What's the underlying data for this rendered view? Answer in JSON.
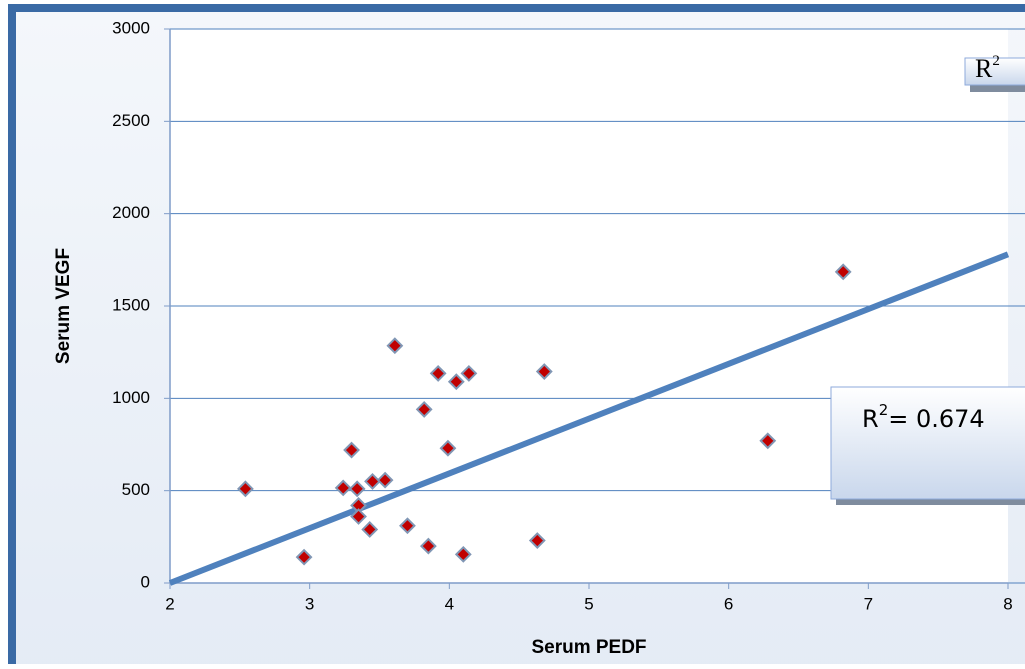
{
  "chart_data": {
    "type": "scatter",
    "x_label": "Serum PEDF",
    "y_label": "Serum VEGF",
    "x": [
      2.54,
      2.96,
      3.24,
      3.3,
      3.34,
      3.35,
      3.35,
      3.43,
      3.45,
      3.54,
      3.61,
      3.7,
      3.82,
      3.85,
      3.92,
      3.99,
      4.05,
      4.1,
      4.14,
      4.63,
      4.68,
      6.28,
      6.82
    ],
    "values": [
      510,
      140,
      515,
      720,
      510,
      420,
      360,
      290,
      550,
      557,
      1285,
      310,
      940,
      200,
      1135,
      730,
      1090,
      155,
      1135,
      230,
      1145,
      770,
      1685
    ],
    "color": "#c00000",
    "xlim": [
      2,
      8
    ],
    "xticks": [
      2,
      3,
      4,
      5,
      6,
      7,
      8
    ],
    "ylim": [
      0,
      3000
    ],
    "yticks": [
      0,
      500,
      1000,
      1500,
      2000,
      2500,
      3000
    ],
    "grid": true,
    "trendline": {
      "x": [
        2,
        8
      ],
      "y": [
        0,
        1780
      ],
      "color": "#4f81bd"
    },
    "annotations": [
      {
        "base": "R",
        "sup": "2",
        "text": "= 0.674"
      },
      {
        "base": "R",
        "sup": "2"
      }
    ]
  }
}
